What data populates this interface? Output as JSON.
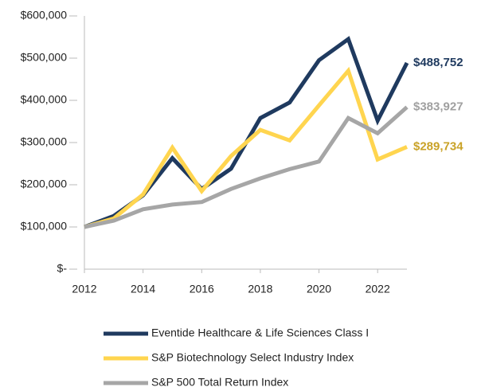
{
  "chart_data": {
    "type": "line",
    "x": [
      2012,
      2013,
      2014,
      2015,
      2016,
      2017,
      2018,
      2019,
      2020,
      2021,
      2022,
      2023
    ],
    "xlim": [
      2012,
      2023
    ],
    "xticks": [
      2012,
      2014,
      2016,
      2018,
      2020,
      2022
    ],
    "ylim": [
      0,
      600000
    ],
    "yticks": [
      {
        "value": 0,
        "label": "$-"
      },
      {
        "value": 100000,
        "label": "$100,000"
      },
      {
        "value": 200000,
        "label": "$200,000"
      },
      {
        "value": 300000,
        "label": "$300,000"
      },
      {
        "value": 400000,
        "label": "$400,000"
      },
      {
        "value": 500000,
        "label": "$500,000"
      },
      {
        "value": 600000,
        "label": "$600,000"
      }
    ],
    "grid": false,
    "legend": "bottom",
    "series": [
      {
        "name": "Eventide Healthcare & Life Sciences Class I",
        "color": "#1f3a5f",
        "values": [
          100000,
          126000,
          175000,
          263000,
          190000,
          238000,
          358000,
          395000,
          495000,
          545000,
          352000,
          488752
        ],
        "value_labels": [
          null,
          null,
          null,
          null,
          null,
          null,
          null,
          null,
          null,
          null,
          null,
          "$488,752"
        ],
        "label_color": "#1f3a5f"
      },
      {
        "name": "S&P Biotechnology Select Industry Index",
        "color": "#ffd54f",
        "values": [
          100000,
          120000,
          177000,
          288000,
          185000,
          268000,
          330000,
          305000,
          388000,
          470000,
          260000,
          289734
        ],
        "value_labels": [
          null,
          null,
          null,
          null,
          null,
          null,
          null,
          null,
          null,
          null,
          null,
          "$289,734"
        ],
        "label_color": "#c9a227"
      },
      {
        "name": "S&P 500 Total Return Index",
        "color": "#a6a6a6",
        "values": [
          100000,
          115000,
          142000,
          153000,
          159000,
          190000,
          215000,
          237000,
          255000,
          358000,
          322000,
          383927
        ],
        "value_labels": [
          null,
          null,
          null,
          null,
          null,
          null,
          null,
          null,
          null,
          null,
          null,
          "$383,927"
        ],
        "label_color": "#a0a0a0"
      }
    ]
  }
}
